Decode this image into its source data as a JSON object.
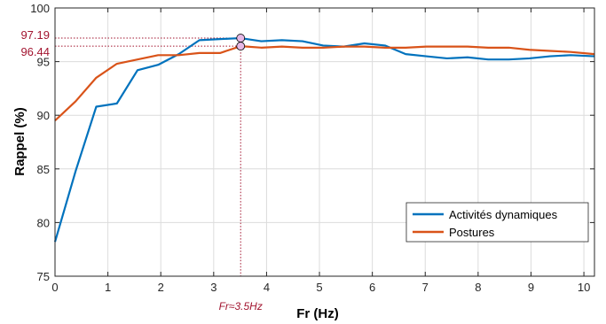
{
  "chart_data": {
    "type": "line",
    "title": "",
    "xlabel": "Fr (Hz)",
    "ylabel": "Rappel (%)",
    "xlim": [
      0,
      10.2
    ],
    "ylim": [
      75,
      100
    ],
    "xticks": [
      "0",
      "1",
      "2",
      "3",
      "4",
      "5",
      "6",
      "7",
      "8",
      "9",
      "10"
    ],
    "yticks": [
      "75",
      "80",
      "85",
      "90",
      "95",
      "100"
    ],
    "grid": true,
    "legend_position": "bottom-right",
    "series": [
      {
        "name": "Activités dynamiques",
        "color": "#0072BD",
        "x": [
          0,
          0.39,
          0.78,
          1.17,
          1.56,
          1.95,
          2.34,
          2.73,
          3.12,
          3.51,
          3.9,
          4.29,
          4.68,
          5.07,
          5.46,
          5.85,
          6.24,
          6.63,
          7.02,
          7.41,
          7.8,
          8.19,
          8.58,
          8.97,
          9.36,
          9.75,
          10.2
        ],
        "y": [
          78.2,
          84.8,
          90.8,
          91.1,
          94.2,
          94.7,
          95.7,
          97.0,
          97.1,
          97.19,
          96.9,
          97.0,
          96.9,
          96.5,
          96.4,
          96.7,
          96.5,
          95.7,
          95.5,
          95.3,
          95.4,
          95.2,
          95.2,
          95.3,
          95.5,
          95.6,
          95.5
        ]
      },
      {
        "name": "Postures",
        "color": "#D95319",
        "x": [
          0,
          0.39,
          0.78,
          1.17,
          1.56,
          1.95,
          2.34,
          2.73,
          3.12,
          3.51,
          3.9,
          4.29,
          4.68,
          5.07,
          5.46,
          5.85,
          6.24,
          6.63,
          7.02,
          7.41,
          7.8,
          8.19,
          8.58,
          8.97,
          9.36,
          9.75,
          10.2
        ],
        "y": [
          89.5,
          91.3,
          93.5,
          94.8,
          95.2,
          95.6,
          95.6,
          95.8,
          95.8,
          96.44,
          96.3,
          96.4,
          96.3,
          96.3,
          96.4,
          96.4,
          96.3,
          96.3,
          96.4,
          96.4,
          96.4,
          96.3,
          96.3,
          96.1,
          96.0,
          95.9,
          95.7
        ]
      }
    ],
    "highlight": {
      "x": 3.51,
      "values": [
        97.19,
        96.44
      ],
      "value_labels": [
        "97.19",
        "96.44"
      ],
      "x_label": "Fr≈3.5Hz",
      "color": "#A2142F",
      "marker_fill": "#E6B8E6"
    }
  }
}
